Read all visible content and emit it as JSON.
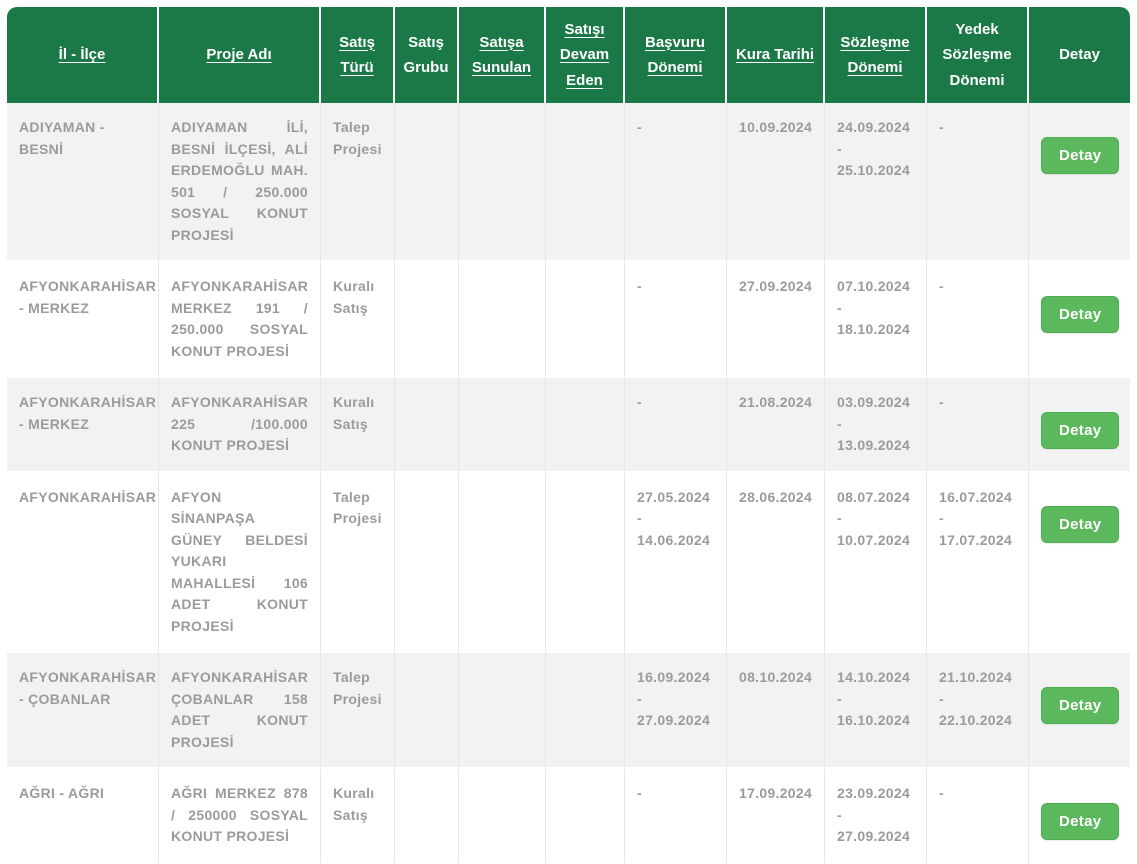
{
  "theme": {
    "header_bg": "#1a7947",
    "header_text": "#ffffff",
    "button_bg": "#5cb85c",
    "button_border": "#4cae4c",
    "button_text": "#ffffff",
    "row_alt_bg": "#f2f2f2",
    "row_bg": "#ffffff",
    "body_text": "#9b9b9b",
    "cell_border": "#e6e6e6"
  },
  "table": {
    "detail_button_label": "Detay",
    "columns": [
      {
        "id": "il-ilce",
        "label": "İl - İlçe",
        "sortable": true,
        "width": 152
      },
      {
        "id": "proje-adi",
        "label": "Proje Adı",
        "sortable": true,
        "width": 162
      },
      {
        "id": "satis-turu",
        "label": "Satış Türü",
        "sortable": true,
        "width": 74
      },
      {
        "id": "satis-grubu",
        "label": "Satış Grubu",
        "sortable": false,
        "width": 64
      },
      {
        "id": "satisa-sunulan",
        "label": "Satışa Sunulan",
        "sortable": true,
        "width": 87
      },
      {
        "id": "satisi-devam-eden",
        "label": "Satışı Devam Eden",
        "sortable": true,
        "width": 79
      },
      {
        "id": "basvuru-donemi",
        "label": "Başvuru Dönemi",
        "sortable": true,
        "width": 102
      },
      {
        "id": "kura-tarihi",
        "label": "Kura Tarihi",
        "sortable": true,
        "width": 98
      },
      {
        "id": "sozlesme-donemi",
        "label": "Sözleşme Dönemi",
        "sortable": true,
        "width": 102
      },
      {
        "id": "yedek-sozlesme-donemi",
        "label": "Yedek Sözleşme Dönemi",
        "sortable": false,
        "width": 102
      },
      {
        "id": "detay",
        "label": "Detay",
        "sortable": false,
        "width": 101
      }
    ],
    "rows": [
      {
        "il_ilce": "ADIYAMAN - BESNİ",
        "proje_adi": "ADIYAMAN İLİ, BESNİ İLÇESİ, ALİ ERDEMOĞLU MAH. 501 / 250.000 SOSYAL KONUT PROJESİ",
        "satis_turu": "Talep Projesi",
        "satis_grubu": "",
        "satisa_sunulan": "",
        "satisi_devam_eden": "",
        "basvuru_donemi": "-",
        "kura_tarihi": "10.09.2024",
        "sozlesme_donemi": "24.09.2024\n-\n25.10.2024",
        "yedek_sozlesme_donemi": "-"
      },
      {
        "il_ilce": "AFYONKARAHİSAR\n- MERKEZ",
        "proje_adi": "AFYONKARAHİSAR MERKEZ 191 / 250.000 SOSYAL KONUT PROJESİ",
        "satis_turu": "Kuralı Satış",
        "satis_grubu": "",
        "satisa_sunulan": "",
        "satisi_devam_eden": "",
        "basvuru_donemi": "-",
        "kura_tarihi": "27.09.2024",
        "sozlesme_donemi": "07.10.2024 -\n18.10.2024",
        "yedek_sozlesme_donemi": "-"
      },
      {
        "il_ilce": "AFYONKARAHİSAR\n- MERKEZ",
        "proje_adi": "AFYONKARAHİSAR 225 /100.000 KONUT PROJESİ",
        "satis_turu": "Kuralı Satış",
        "satis_grubu": "",
        "satisa_sunulan": "",
        "satisi_devam_eden": "",
        "basvuru_donemi": "-",
        "kura_tarihi": "21.08.2024",
        "sozlesme_donemi": "03.09.2024\n-\n13.09.2024",
        "yedek_sozlesme_donemi": "-"
      },
      {
        "il_ilce": "AFYONKARAHİSAR",
        "proje_adi": "AFYON SİNANPAŞA GÜNEY BELDESİ YUKARI MAHALLESİ 106 ADET KONUT PROJESİ",
        "satis_turu": "Talep Projesi",
        "satis_grubu": "",
        "satisa_sunulan": "",
        "satisi_devam_eden": "",
        "basvuru_donemi": "27.05.2024\n-\n14.06.2024",
        "kura_tarihi": "28.06.2024",
        "sozlesme_donemi": "08.07.2024\n-\n10.07.2024",
        "yedek_sozlesme_donemi": "16.07.2024\n- 17.07.2024"
      },
      {
        "il_ilce": "AFYONKARAHİSAR\n- ÇOBANLAR",
        "proje_adi": "AFYONKARAHİSAR ÇOBANLAR 158 ADET KONUT PROJESİ",
        "satis_turu": "Talep Projesi",
        "satis_grubu": "",
        "satisa_sunulan": "",
        "satisi_devam_eden": "",
        "basvuru_donemi": "16.09.2024\n-\n27.09.2024",
        "kura_tarihi": "08.10.2024",
        "sozlesme_donemi": "14.10.2024 -\n16.10.2024",
        "yedek_sozlesme_donemi": "21.10.2024 -\n22.10.2024"
      },
      {
        "il_ilce": "AĞRI - AĞRI",
        "proje_adi": "AĞRI MERKEZ 878 / 250000 SOSYAL KONUT PROJESİ",
        "satis_turu": "Kuralı Satış",
        "satis_grubu": "",
        "satisa_sunulan": "",
        "satisi_devam_eden": "",
        "basvuru_donemi": "-",
        "kura_tarihi": "17.09.2024",
        "sozlesme_donemi": "23.09.2024\n-\n27.09.2024",
        "yedek_sozlesme_donemi": "-"
      }
    ]
  }
}
